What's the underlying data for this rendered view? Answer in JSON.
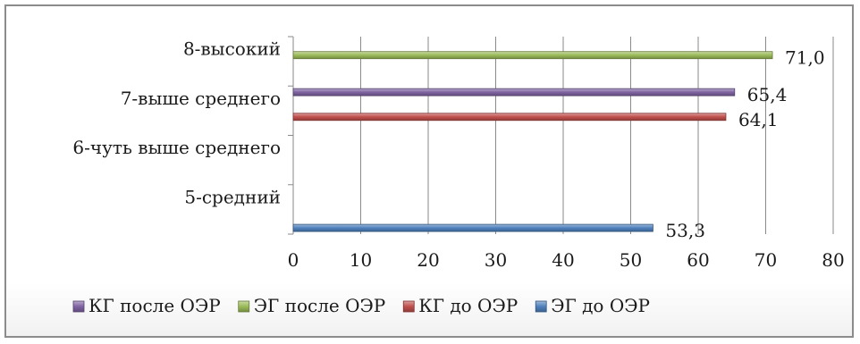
{
  "chart_data": {
    "type": "bar",
    "orientation": "horizontal",
    "categories": [
      "5-средний",
      "6-чуть выше среднего",
      "7-выше среднего",
      "8-высокий"
    ],
    "series": [
      {
        "name": "ЭГ до ОЭР",
        "color": "#4f81bd",
        "values": [
          53.3,
          null,
          null,
          null
        ],
        "labels": [
          "53,3",
          null,
          null,
          null
        ]
      },
      {
        "name": "КГ до ОЭР",
        "color": "#c0504d",
        "values": [
          null,
          null,
          64.1,
          null
        ],
        "labels": [
          null,
          null,
          "64,1",
          null
        ]
      },
      {
        "name": "ЭГ после ОЭР",
        "color": "#9bbb59",
        "values": [
          null,
          null,
          null,
          71.0
        ],
        "labels": [
          null,
          null,
          null,
          "71,0"
        ]
      },
      {
        "name": "КГ после ОЭР",
        "color": "#8064a2",
        "values": [
          null,
          null,
          65.4,
          null
        ],
        "labels": [
          null,
          null,
          "65,4",
          null
        ]
      }
    ],
    "xlim": [
      0,
      80
    ],
    "xticks": [
      0,
      10,
      20,
      30,
      40,
      50,
      60,
      70,
      80
    ],
    "xtick_labels": [
      "0",
      "10",
      "20",
      "30",
      "40",
      "50",
      "60",
      "70",
      "80"
    ],
    "grid": "vertical",
    "legend": {
      "position": "bottom",
      "order": [
        "КГ после ОЭР",
        "ЭГ после ОЭР",
        "КГ до ОЭР",
        "ЭГ до ОЭР"
      ]
    },
    "title": "",
    "xlabel": "",
    "ylabel": ""
  }
}
